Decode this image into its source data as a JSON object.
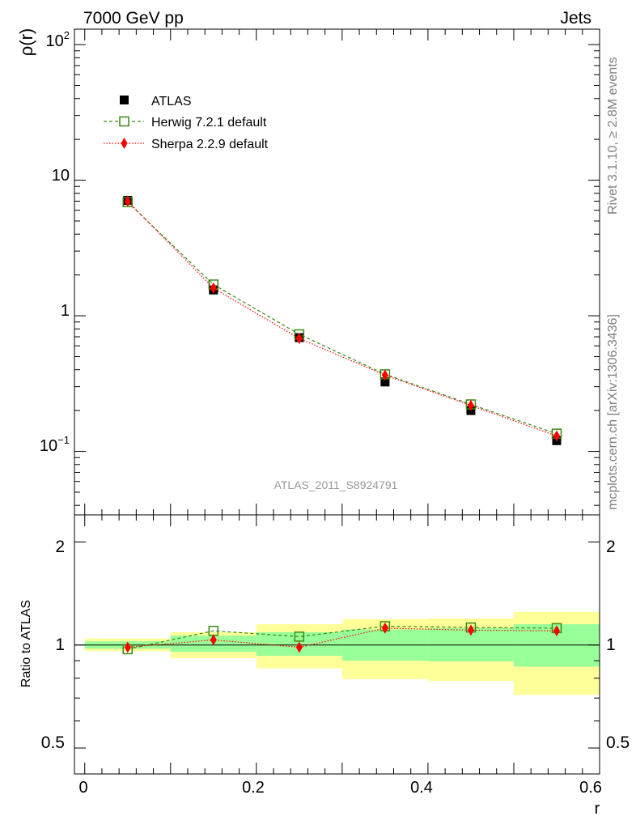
{
  "header": {
    "left": "7000 GeV pp",
    "right": "Jets"
  },
  "side_labels": {
    "rivet": "Rivet 3.1.10, ≥ 2.8M events",
    "mcplots": "mcplots.cern.ch [arXiv:1306.3436]"
  },
  "watermark": "ATLAS_2011_S8924791",
  "colors": {
    "atlas": "#000000",
    "herwig": "#3a8a10",
    "sherpa": "#ff0000",
    "band_inner": "#99ff99",
    "band_outer": "#ffff99"
  },
  "chart_data": [
    {
      "type": "scatter",
      "ylabel": "ρ(r)",
      "xlabel": "r",
      "yscale": "log",
      "xlim": [
        -0.012,
        0.6
      ],
      "ylim": [
        0.034,
        130
      ],
      "y_tick_labels": [
        "10",
        "1"
      ],
      "legend": {
        "placement": "top-left",
        "entries": [
          "ATLAS",
          "Herwig 7.2.1 default",
          "Sherpa 2.2.9 default"
        ]
      },
      "x": [
        0.05,
        0.15,
        0.25,
        0.35,
        0.45,
        0.55
      ],
      "series": [
        {
          "name": "ATLAS",
          "marker": "square",
          "values": [
            7.1,
            1.55,
            0.69,
            0.325,
            0.2,
            0.12
          ]
        },
        {
          "name": "Herwig 7.2.1 default",
          "marker": "open-square",
          "line": "dashed",
          "values": [
            6.9,
            1.7,
            0.73,
            0.37,
            0.222,
            0.135
          ]
        },
        {
          "name": "Sherpa 2.2.9 default",
          "marker": "diamond",
          "line": "dotted",
          "values": [
            7.0,
            1.6,
            0.68,
            0.365,
            0.218,
            0.13
          ]
        }
      ]
    },
    {
      "type": "scatter",
      "ylabel": "Ratio to ATLAS",
      "xlabel": "r",
      "xlim": [
        -0.012,
        0.6
      ],
      "ylim": [
        0.42,
        2.4
      ],
      "y_ticks": [
        "2",
        "1",
        "0.5"
      ],
      "x_ticks": [
        "0",
        "0.2",
        "0.4",
        "0.6"
      ],
      "x": [
        0.05,
        0.15,
        0.25,
        0.35,
        0.45,
        0.55
      ],
      "bins": [
        [
          0.0,
          0.1
        ],
        [
          0.1,
          0.2
        ],
        [
          0.2,
          0.3
        ],
        [
          0.3,
          0.4
        ],
        [
          0.4,
          0.5
        ],
        [
          0.5,
          0.6
        ]
      ],
      "band_inner": [
        [
          0.975,
          1.025
        ],
        [
          0.955,
          1.065
        ],
        [
          0.93,
          1.09
        ],
        [
          0.9,
          1.11
        ],
        [
          0.895,
          1.12
        ],
        [
          0.865,
          1.15
        ]
      ],
      "band_outer": [
        [
          0.96,
          1.045
        ],
        [
          0.915,
          1.09
        ],
        [
          0.855,
          1.15
        ],
        [
          0.795,
          1.19
        ],
        [
          0.785,
          1.195
        ],
        [
          0.715,
          1.25
        ]
      ],
      "series": [
        {
          "name": "Herwig 7.2.1 default",
          "marker": "open-square",
          "line": "dashed",
          "values": [
            0.972,
            1.1,
            1.058,
            1.135,
            1.125,
            1.12
          ]
        },
        {
          "name": "Sherpa 2.2.9 default",
          "marker": "diamond",
          "line": "dotted",
          "values": [
            0.985,
            1.035,
            0.985,
            1.12,
            1.105,
            1.1
          ]
        }
      ]
    }
  ]
}
